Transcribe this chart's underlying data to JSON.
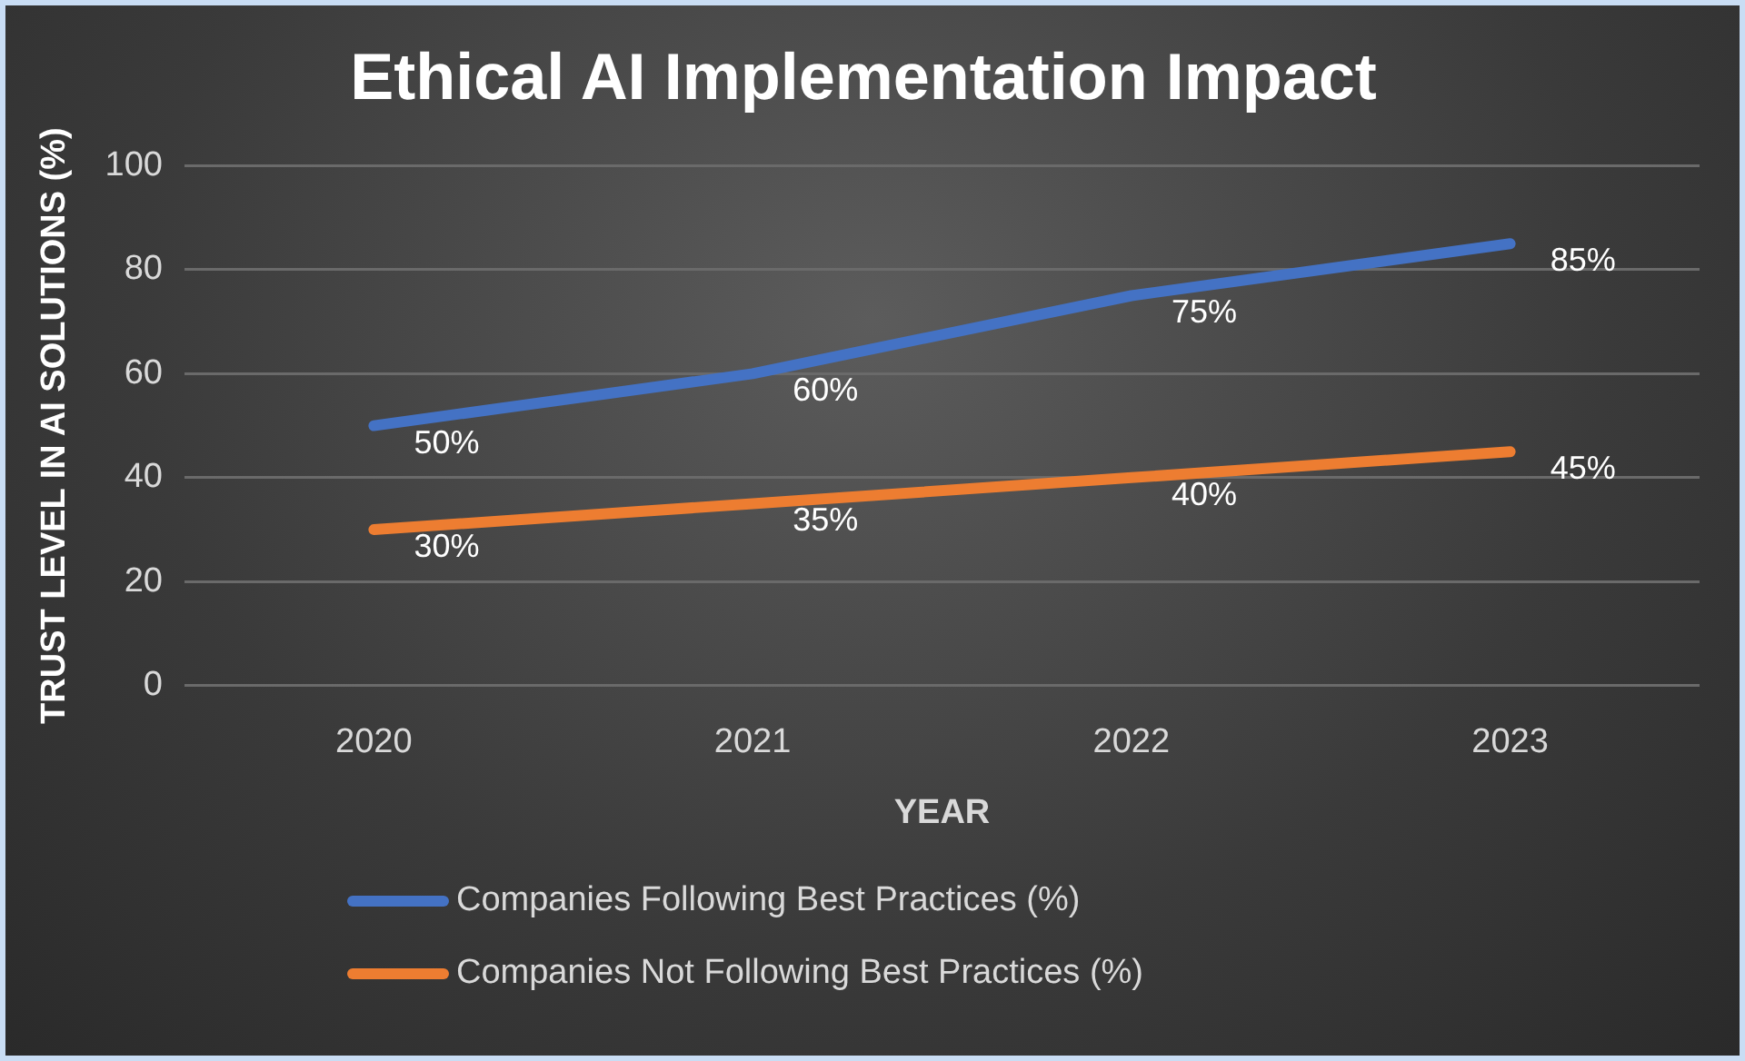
{
  "chart_data": {
    "type": "line",
    "title": "Ethical AI Implementation Impact",
    "xlabel": "YEAR",
    "ylabel": "TRUST LEVEL IN AI SOLUTIONS (%)",
    "categories": [
      "2020",
      "2021",
      "2022",
      "2023"
    ],
    "series": [
      {
        "name": "Companies Following Best Practices (%)",
        "color": "#4472c4",
        "values": [
          50,
          60,
          75,
          85
        ],
        "value_labels": [
          "50%",
          "60%",
          "75%",
          "85%"
        ]
      },
      {
        "name": "Companies Not Following Best Practices (%)",
        "color": "#ed7d31",
        "values": [
          30,
          35,
          40,
          45
        ],
        "value_labels": [
          "30%",
          "35%",
          "40%",
          "45%"
        ]
      }
    ],
    "ylim": [
      0,
      100
    ],
    "yticks": [
      0,
      20,
      40,
      60,
      80,
      100
    ],
    "grid": "y",
    "legend": "bottom",
    "marker": "none",
    "line_style": "solid"
  }
}
